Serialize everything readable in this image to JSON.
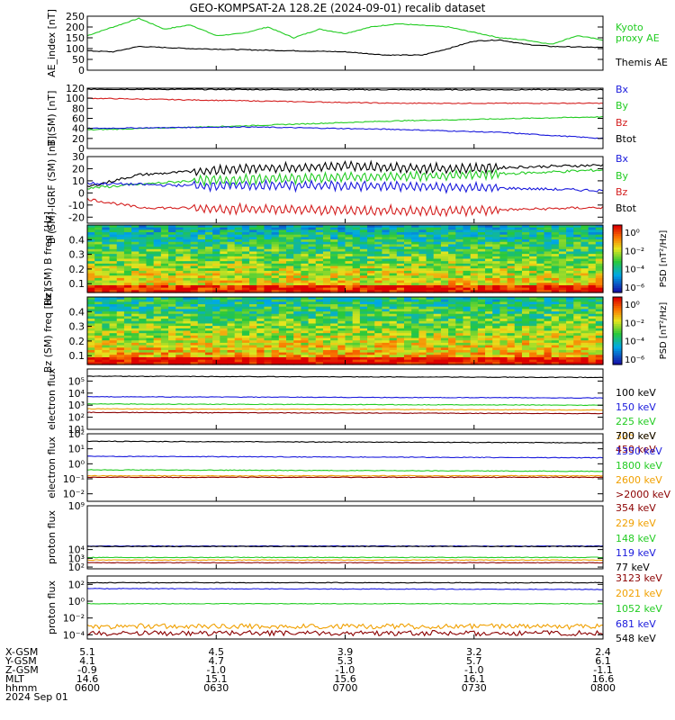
{
  "title": "GEO-KOMPSAT-2A 128.2E (2024-09-01) recalib dataset",
  "colors": {
    "black": "#000000",
    "blue": "#1a1adc",
    "green": "#22cc22",
    "red": "#d42020",
    "orange": "#f0a000",
    "darkred": "#8b0000"
  },
  "chart_data": [
    {
      "type": "line",
      "ylabel": "AE_index [nT]",
      "ylim": [
        0,
        250
      ],
      "yticks": [
        "0",
        "50",
        "100",
        "150",
        "200",
        "250"
      ],
      "series": [
        {
          "name": "Kyoto proxy AE",
          "color": "green",
          "key": [
            [
              0,
              160
            ],
            [
              0.05,
              200
            ],
            [
              0.1,
              240
            ],
            [
              0.15,
              190
            ],
            [
              0.2,
              210
            ],
            [
              0.25,
              160
            ],
            [
              0.3,
              170
            ],
            [
              0.35,
              200
            ],
            [
              0.4,
              150
            ],
            [
              0.45,
              190
            ],
            [
              0.5,
              170
            ],
            [
              0.55,
              200
            ],
            [
              0.6,
              215
            ],
            [
              0.7,
              200
            ],
            [
              0.8,
              150
            ],
            [
              0.85,
              140
            ],
            [
              0.9,
              120
            ],
            [
              0.95,
              160
            ],
            [
              1,
              140
            ]
          ]
        },
        {
          "name": "Themis AE",
          "color": "black",
          "key": [
            [
              0,
              90
            ],
            [
              0.05,
              85
            ],
            [
              0.1,
              110
            ],
            [
              0.2,
              100
            ],
            [
              0.3,
              95
            ],
            [
              0.4,
              90
            ],
            [
              0.5,
              85
            ],
            [
              0.58,
              70
            ],
            [
              0.65,
              70
            ],
            [
              0.7,
              100
            ],
            [
              0.75,
              135
            ],
            [
              0.8,
              140
            ],
            [
              0.85,
              120
            ],
            [
              0.9,
              110
            ],
            [
              1,
              105
            ]
          ]
        }
      ],
      "legend": [
        {
          "label": "Kyoto",
          "color": "green"
        },
        {
          "label": "proxy AE",
          "color": "green"
        },
        {
          "label": "Themis AE",
          "color": "black"
        }
      ]
    },
    {
      "type": "line",
      "ylabel": "B (SM) [nT]",
      "ylim": [
        0,
        120
      ],
      "yticks": [
        "0",
        "20",
        "40",
        "60",
        "80",
        "100",
        "120"
      ],
      "series": [
        {
          "name": "Btot",
          "color": "black",
          "key": [
            [
              0,
              118
            ],
            [
              0.5,
              117
            ],
            [
              1,
              117
            ]
          ]
        },
        {
          "name": "Bz",
          "color": "red",
          "key": [
            [
              0,
              100
            ],
            [
              0.3,
              95
            ],
            [
              0.6,
              90
            ],
            [
              1,
              90
            ]
          ]
        },
        {
          "name": "By",
          "color": "green",
          "key": [
            [
              0,
              37
            ],
            [
              0.3,
              45
            ],
            [
              0.6,
              55
            ],
            [
              1,
              63
            ]
          ]
        },
        {
          "name": "Bx",
          "color": "blue",
          "key": [
            [
              0,
              40
            ],
            [
              0.3,
              43
            ],
            [
              0.6,
              38
            ],
            [
              0.8,
              32
            ],
            [
              1,
              20
            ]
          ]
        }
      ],
      "legend": [
        {
          "label": "Bx",
          "color": "blue"
        },
        {
          "label": "By",
          "color": "green"
        },
        {
          "label": "Bz",
          "color": "red"
        },
        {
          "label": "Btot",
          "color": "black"
        }
      ]
    },
    {
      "type": "line",
      "ylabel": "B (SM)-IGRF (SM) [nT]",
      "ylim": [
        -25,
        30
      ],
      "yticks": [
        "-20",
        "-10",
        "0",
        "10",
        "20",
        "30"
      ],
      "series": [
        {
          "name": "Btot",
          "color": "black",
          "key": [
            [
              0,
              5
            ],
            [
              0.1,
              15
            ],
            [
              0.3,
              20
            ],
            [
              0.5,
              22
            ],
            [
              0.7,
              20
            ],
            [
              1,
              23
            ]
          ]
        },
        {
          "name": "By",
          "color": "green",
          "key": [
            [
              0,
              4
            ],
            [
              0.2,
              10
            ],
            [
              0.5,
              13
            ],
            [
              0.7,
              14
            ],
            [
              1,
              19
            ]
          ]
        },
        {
          "name": "Bx",
          "color": "blue",
          "key": [
            [
              0,
              8
            ],
            [
              0.2,
              6
            ],
            [
              0.5,
              6
            ],
            [
              0.8,
              4
            ],
            [
              1,
              2
            ]
          ]
        },
        {
          "name": "Bz",
          "color": "red",
          "key": [
            [
              0,
              -5
            ],
            [
              0.1,
              -12
            ],
            [
              0.4,
              -14
            ],
            [
              0.7,
              -15
            ],
            [
              1,
              -12
            ]
          ]
        }
      ],
      "legend": [
        {
          "label": "Bx",
          "color": "blue"
        },
        {
          "label": "By",
          "color": "green"
        },
        {
          "label": "Bz",
          "color": "red"
        },
        {
          "label": "Btot",
          "color": "black"
        }
      ]
    },
    {
      "type": "heatmap",
      "ylabel": "Bx (SM) B freq [Hz]",
      "yticks": [
        "0.1",
        "0.2",
        "0.3",
        "0.4"
      ],
      "colorbar": {
        "label": "PSD [nT²/Hz]",
        "ticks": [
          "10⁰",
          "10⁻²",
          "10⁻⁴",
          "10⁻⁶"
        ]
      }
    },
    {
      "type": "heatmap",
      "ylabel": "Bz (SM) freq [Hz]",
      "yticks": [
        "0.1",
        "0.2",
        "0.3",
        "0.4"
      ],
      "colorbar": {
        "label": "PSD [nT²/Hz]",
        "ticks": [
          "10⁰",
          "10⁻²",
          "10⁻⁴",
          "10⁻⁶"
        ]
      }
    },
    {
      "type": "line",
      "ylabel": "electron flux",
      "yscale": "log",
      "ylim": [
        1,
        6
      ],
      "yticks": [
        "10¹",
        "10²",
        "10³",
        "10⁴",
        "10⁵"
      ],
      "series": [
        {
          "name": "100 keV",
          "color": "black",
          "key": [
            [
              0,
              5.4
            ],
            [
              1,
              5.3
            ]
          ]
        },
        {
          "name": "150 keV",
          "color": "blue",
          "key": [
            [
              0,
              3.7
            ],
            [
              1,
              3.6
            ]
          ]
        },
        {
          "name": "225 keV",
          "color": "green",
          "key": [
            [
              0,
              3.1
            ],
            [
              1,
              3.0
            ]
          ]
        },
        {
          "name": "325 keV",
          "color": "orange",
          "key": [
            [
              0,
              2.7
            ],
            [
              1,
              2.6
            ]
          ]
        },
        {
          "name": "450 keV",
          "color": "darkred",
          "key": [
            [
              0,
              2.4
            ],
            [
              1,
              2.3
            ]
          ]
        }
      ],
      "legend": [
        {
          "label": "100 keV",
          "color": "black"
        },
        {
          "label": "150 keV",
          "color": "blue"
        },
        {
          "label": "225 keV",
          "color": "green"
        },
        {
          "label": "325 keV",
          "color": "orange"
        },
        {
          "label": "450 keV",
          "color": "darkred"
        }
      ]
    },
    {
      "type": "line",
      "ylabel": "electron flux",
      "yscale": "log",
      "ylim": [
        -2.5,
        2
      ],
      "yticks": [
        "10⁻²",
        "10⁻¹",
        "10⁰",
        "10¹",
        "10²"
      ],
      "series": [
        {
          "name": "700 keV",
          "color": "black",
          "key": [
            [
              0,
              1.5
            ],
            [
              1,
              1.4
            ]
          ]
        },
        {
          "name": "1350 keV",
          "color": "blue",
          "key": [
            [
              0,
              0.5
            ],
            [
              1,
              0.4
            ]
          ]
        },
        {
          "name": "1800 keV",
          "color": "green",
          "key": [
            [
              0,
              -0.4
            ],
            [
              1,
              -0.5
            ]
          ]
        },
        {
          "name": "2600 keV",
          "color": "orange",
          "key": [
            [
              0,
              -0.8
            ],
            [
              1,
              -0.8
            ]
          ]
        },
        {
          "name": ">2000 keV",
          "color": "darkred",
          "key": [
            [
              0,
              -0.9
            ],
            [
              1,
              -0.9
            ]
          ]
        }
      ],
      "legend": [
        {
          "label": "700 keV",
          "color": "black"
        },
        {
          "label": "1350 keV",
          "color": "blue"
        },
        {
          "label": "1800 keV",
          "color": "green"
        },
        {
          "label": "2600 keV",
          "color": "orange"
        },
        {
          "label": ">2000 keV",
          "color": "darkred"
        }
      ]
    },
    {
      "type": "line",
      "ylabel": "proton flux",
      "yscale": "log",
      "ylim": [
        1.8,
        9
      ],
      "yticks": [
        "10²",
        "10³",
        "10⁴",
        "10⁹"
      ],
      "series": [
        {
          "name": "354 keV",
          "color": "darkred",
          "key": [
            [
              0,
              2.5
            ],
            [
              1,
              2.5
            ]
          ]
        },
        {
          "name": "229 keV",
          "color": "orange",
          "key": [
            [
              0,
              2.8
            ],
            [
              1,
              2.8
            ]
          ]
        },
        {
          "name": "148 keV",
          "color": "green",
          "key": [
            [
              0,
              3.1
            ],
            [
              1,
              3.1
            ]
          ]
        },
        {
          "name": "119 keV",
          "color": "blue",
          "key": [
            [
              0,
              4.4
            ],
            [
              1,
              4.4
            ]
          ]
        },
        {
          "name": "77 keV",
          "color": "black",
          "key": [
            [
              0,
              4.35
            ],
            [
              1,
              4.35
            ]
          ]
        }
      ],
      "legend": [
        {
          "label": "354 keV",
          "color": "darkred"
        },
        {
          "label": "229 keV",
          "color": "orange"
        },
        {
          "label": "148 keV",
          "color": "green"
        },
        {
          "label": "119 keV",
          "color": "blue"
        },
        {
          "label": "77 keV",
          "color": "black"
        }
      ]
    },
    {
      "type": "line",
      "ylabel": "proton flux",
      "yscale": "log",
      "ylim": [
        -4.5,
        3
      ],
      "yticks": [
        "10⁻⁴",
        "10⁻²",
        "10⁰",
        "10²"
      ],
      "series": [
        {
          "name": "548 keV",
          "color": "black",
          "key": [
            [
              0,
              2.2
            ],
            [
              1,
              2.2
            ]
          ]
        },
        {
          "name": "681 keV",
          "color": "blue",
          "key": [
            [
              0,
              1.5
            ],
            [
              1,
              1.4
            ]
          ]
        },
        {
          "name": "1052 keV",
          "color": "green",
          "key": [
            [
              0,
              -0.3
            ],
            [
              1,
              -0.3
            ]
          ]
        },
        {
          "name": "2021 keV",
          "color": "orange",
          "key": [
            [
              0,
              -3.0
            ],
            [
              1,
              -3.0
            ]
          ]
        },
        {
          "name": "3123 keV",
          "color": "darkred",
          "key": [
            [
              0,
              -3.8
            ],
            [
              1,
              -3.8
            ]
          ]
        }
      ],
      "legend": [
        {
          "label": "3123 keV",
          "color": "darkred"
        },
        {
          "label": "2021 keV",
          "color": "orange"
        },
        {
          "label": "1052 keV",
          "color": "green"
        },
        {
          "label": "681 keV",
          "color": "blue"
        },
        {
          "label": "548 keV",
          "color": "black"
        }
      ]
    }
  ],
  "ephemeris": {
    "row_labels": [
      "X-GSM",
      "Y-GSM",
      "Z-GSM",
      "MLT",
      "hhmm",
      "2024 Sep 01"
    ],
    "columns": [
      [
        "5.1",
        "4.1",
        "-0.9",
        "14.6",
        "0600"
      ],
      [
        "4.5",
        "4.7",
        "-1.0",
        "15.1",
        "0630"
      ],
      [
        "3.9",
        "5.3",
        "-1.0",
        "15.6",
        "0700"
      ],
      [
        "3.2",
        "5.7",
        "-1.0",
        "16.1",
        "0730"
      ],
      [
        "2.4",
        "6.1",
        "-1.1",
        "16.6",
        "0800"
      ]
    ]
  }
}
